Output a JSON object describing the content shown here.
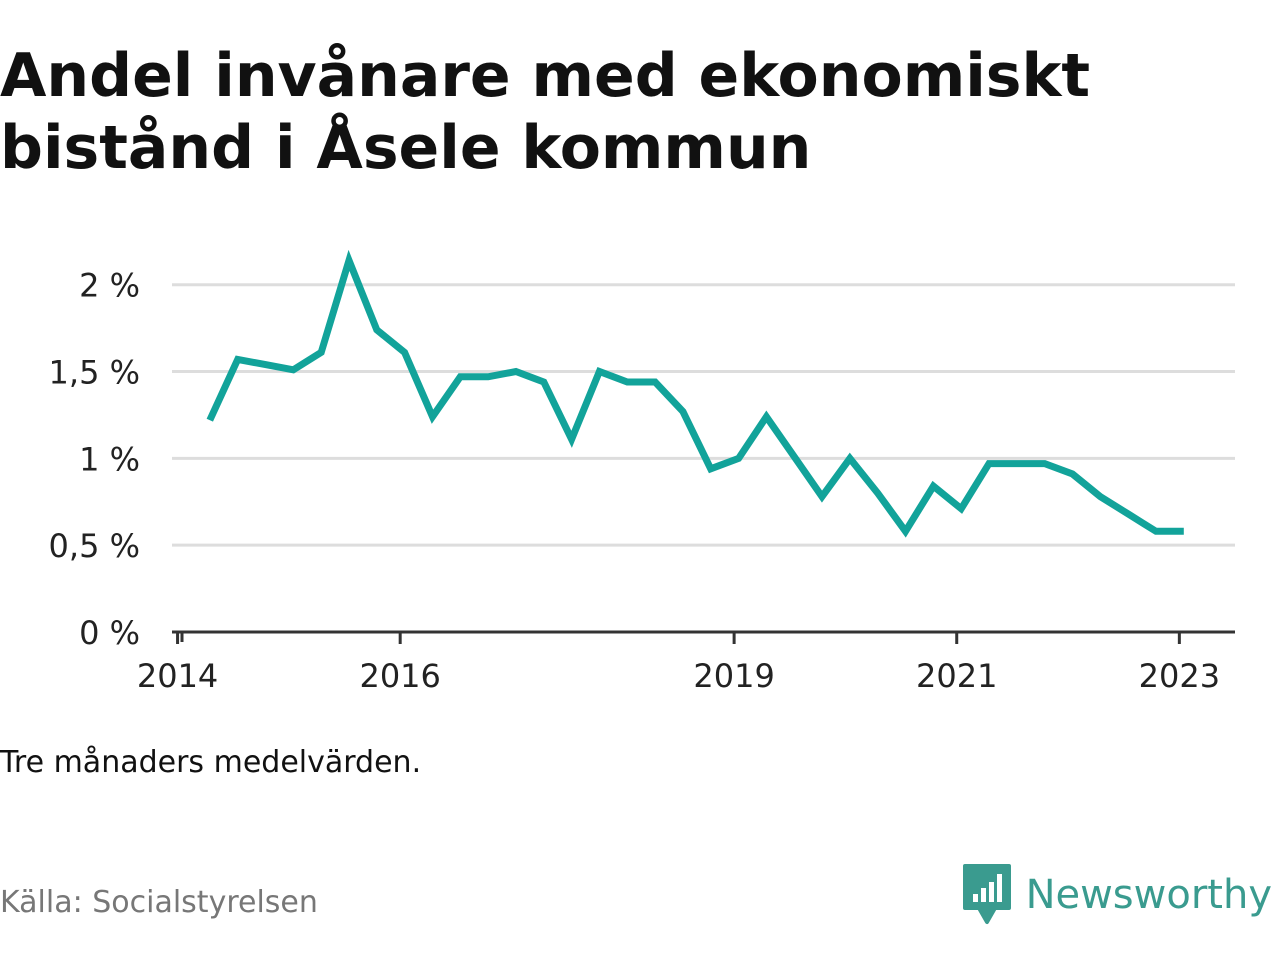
{
  "title": "Andel invånare med ekonomiskt bistånd i Åsele kommun",
  "note": "Tre månaders medelvärden.",
  "source": "Källa: Socialstyrelsen",
  "brand": {
    "name": "Newsworthy",
    "icon": "bar-chart-speech-bubble-icon",
    "color": "#3a9b8f"
  },
  "chart_data": {
    "type": "line",
    "title": "Andel invånare med ekonomiskt bistånd i Åsele kommun",
    "xlabel": "",
    "ylabel": "",
    "line_color": "#12a39a",
    "grid": true,
    "xlim": [
      2013.95,
      2023.5
    ],
    "ylim": [
      0,
      2.2
    ],
    "yticks": [
      0,
      0.5,
      1,
      1.5,
      2
    ],
    "ytick_labels": [
      "0 %",
      "0,5 %",
      "1 %",
      "1,5 %",
      "2 %"
    ],
    "xticks": [
      2014,
      2016,
      2019,
      2021,
      2023
    ],
    "xtick_labels": [
      "2014",
      "2016",
      "2019",
      "2021",
      "2023"
    ],
    "series": [
      {
        "x": [
          2014.29,
          2014.54,
          2014.79,
          2015.04,
          2015.29,
          2015.54,
          2015.79,
          2016.04,
          2016.29,
          2016.54,
          2016.79,
          2017.04,
          2017.29,
          2017.54,
          2017.79,
          2018.04,
          2018.29,
          2018.54,
          2018.79,
          2019.04,
          2019.29,
          2019.54,
          2019.79,
          2020.04,
          2020.29,
          2020.54,
          2020.79,
          2021.04,
          2021.29,
          2021.54,
          2021.79,
          2022.04,
          2022.29,
          2022.54,
          2022.79,
          2023.04
        ],
        "values": [
          1.22,
          1.57,
          1.54,
          1.51,
          1.61,
          2.14,
          1.74,
          1.61,
          1.24,
          1.47,
          1.47,
          1.5,
          1.44,
          1.11,
          1.5,
          1.44,
          1.44,
          1.27,
          0.94,
          1.0,
          1.24,
          1.01,
          0.78,
          1.0,
          0.8,
          0.58,
          0.84,
          0.71,
          0.97,
          0.97,
          0.97,
          0.91,
          0.78,
          0.68,
          0.58,
          0.58
        ]
      }
    ]
  }
}
